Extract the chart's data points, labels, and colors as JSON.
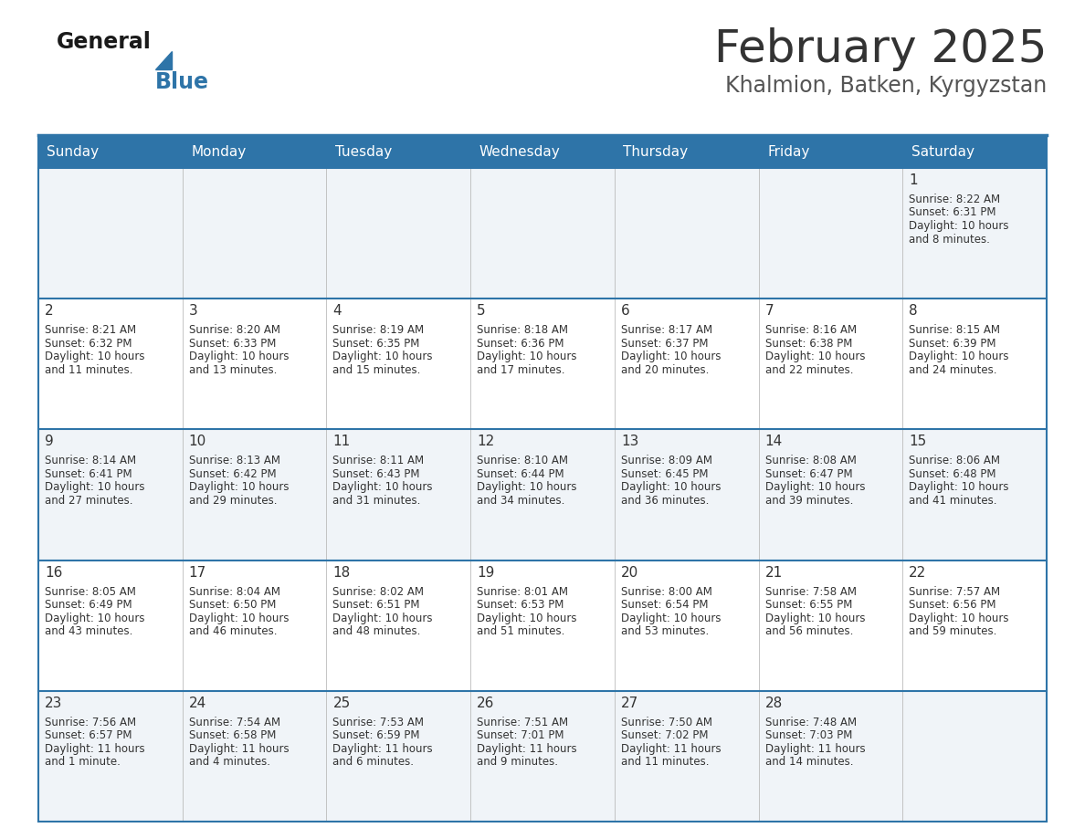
{
  "title": "February 2025",
  "subtitle": "Khalmion, Batken, Kyrgyzstan",
  "header_bg": "#2E74A8",
  "header_text": "#FFFFFF",
  "cell_bg_light": "#F0F4F8",
  "cell_bg_white": "#FFFFFF",
  "cell_text": "#333333",
  "day_number_color": "#333333",
  "grid_line_color": "#2E74A8",
  "background": "#FFFFFF",
  "days_of_week": [
    "Sunday",
    "Monday",
    "Tuesday",
    "Wednesday",
    "Thursday",
    "Friday",
    "Saturday"
  ],
  "calendar_data": [
    [
      null,
      null,
      null,
      null,
      null,
      null,
      {
        "day": 1,
        "sunrise": "8:22 AM",
        "sunset": "6:31 PM",
        "daylight": "10 hours",
        "daylight2": "and 8 minutes."
      }
    ],
    [
      {
        "day": 2,
        "sunrise": "8:21 AM",
        "sunset": "6:32 PM",
        "daylight": "10 hours",
        "daylight2": "and 11 minutes."
      },
      {
        "day": 3,
        "sunrise": "8:20 AM",
        "sunset": "6:33 PM",
        "daylight": "10 hours",
        "daylight2": "and 13 minutes."
      },
      {
        "day": 4,
        "sunrise": "8:19 AM",
        "sunset": "6:35 PM",
        "daylight": "10 hours",
        "daylight2": "and 15 minutes."
      },
      {
        "day": 5,
        "sunrise": "8:18 AM",
        "sunset": "6:36 PM",
        "daylight": "10 hours",
        "daylight2": "and 17 minutes."
      },
      {
        "day": 6,
        "sunrise": "8:17 AM",
        "sunset": "6:37 PM",
        "daylight": "10 hours",
        "daylight2": "and 20 minutes."
      },
      {
        "day": 7,
        "sunrise": "8:16 AM",
        "sunset": "6:38 PM",
        "daylight": "10 hours",
        "daylight2": "and 22 minutes."
      },
      {
        "day": 8,
        "sunrise": "8:15 AM",
        "sunset": "6:39 PM",
        "daylight": "10 hours",
        "daylight2": "and 24 minutes."
      }
    ],
    [
      {
        "day": 9,
        "sunrise": "8:14 AM",
        "sunset": "6:41 PM",
        "daylight": "10 hours",
        "daylight2": "and 27 minutes."
      },
      {
        "day": 10,
        "sunrise": "8:13 AM",
        "sunset": "6:42 PM",
        "daylight": "10 hours",
        "daylight2": "and 29 minutes."
      },
      {
        "day": 11,
        "sunrise": "8:11 AM",
        "sunset": "6:43 PM",
        "daylight": "10 hours",
        "daylight2": "and 31 minutes."
      },
      {
        "day": 12,
        "sunrise": "8:10 AM",
        "sunset": "6:44 PM",
        "daylight": "10 hours",
        "daylight2": "and 34 minutes."
      },
      {
        "day": 13,
        "sunrise": "8:09 AM",
        "sunset": "6:45 PM",
        "daylight": "10 hours",
        "daylight2": "and 36 minutes."
      },
      {
        "day": 14,
        "sunrise": "8:08 AM",
        "sunset": "6:47 PM",
        "daylight": "10 hours",
        "daylight2": "and 39 minutes."
      },
      {
        "day": 15,
        "sunrise": "8:06 AM",
        "sunset": "6:48 PM",
        "daylight": "10 hours",
        "daylight2": "and 41 minutes."
      }
    ],
    [
      {
        "day": 16,
        "sunrise": "8:05 AM",
        "sunset": "6:49 PM",
        "daylight": "10 hours",
        "daylight2": "and 43 minutes."
      },
      {
        "day": 17,
        "sunrise": "8:04 AM",
        "sunset": "6:50 PM",
        "daylight": "10 hours",
        "daylight2": "and 46 minutes."
      },
      {
        "day": 18,
        "sunrise": "8:02 AM",
        "sunset": "6:51 PM",
        "daylight": "10 hours",
        "daylight2": "and 48 minutes."
      },
      {
        "day": 19,
        "sunrise": "8:01 AM",
        "sunset": "6:53 PM",
        "daylight": "10 hours",
        "daylight2": "and 51 minutes."
      },
      {
        "day": 20,
        "sunrise": "8:00 AM",
        "sunset": "6:54 PM",
        "daylight": "10 hours",
        "daylight2": "and 53 minutes."
      },
      {
        "day": 21,
        "sunrise": "7:58 AM",
        "sunset": "6:55 PM",
        "daylight": "10 hours",
        "daylight2": "and 56 minutes."
      },
      {
        "day": 22,
        "sunrise": "7:57 AM",
        "sunset": "6:56 PM",
        "daylight": "10 hours",
        "daylight2": "and 59 minutes."
      }
    ],
    [
      {
        "day": 23,
        "sunrise": "7:56 AM",
        "sunset": "6:57 PM",
        "daylight": "11 hours",
        "daylight2": "and 1 minute."
      },
      {
        "day": 24,
        "sunrise": "7:54 AM",
        "sunset": "6:58 PM",
        "daylight": "11 hours",
        "daylight2": "and 4 minutes."
      },
      {
        "day": 25,
        "sunrise": "7:53 AM",
        "sunset": "6:59 PM",
        "daylight": "11 hours",
        "daylight2": "and 6 minutes."
      },
      {
        "day": 26,
        "sunrise": "7:51 AM",
        "sunset": "7:01 PM",
        "daylight": "11 hours",
        "daylight2": "and 9 minutes."
      },
      {
        "day": 27,
        "sunrise": "7:50 AM",
        "sunset": "7:02 PM",
        "daylight": "11 hours",
        "daylight2": "and 11 minutes."
      },
      {
        "day": 28,
        "sunrise": "7:48 AM",
        "sunset": "7:03 PM",
        "daylight": "11 hours",
        "daylight2": "and 14 minutes."
      },
      null
    ]
  ]
}
